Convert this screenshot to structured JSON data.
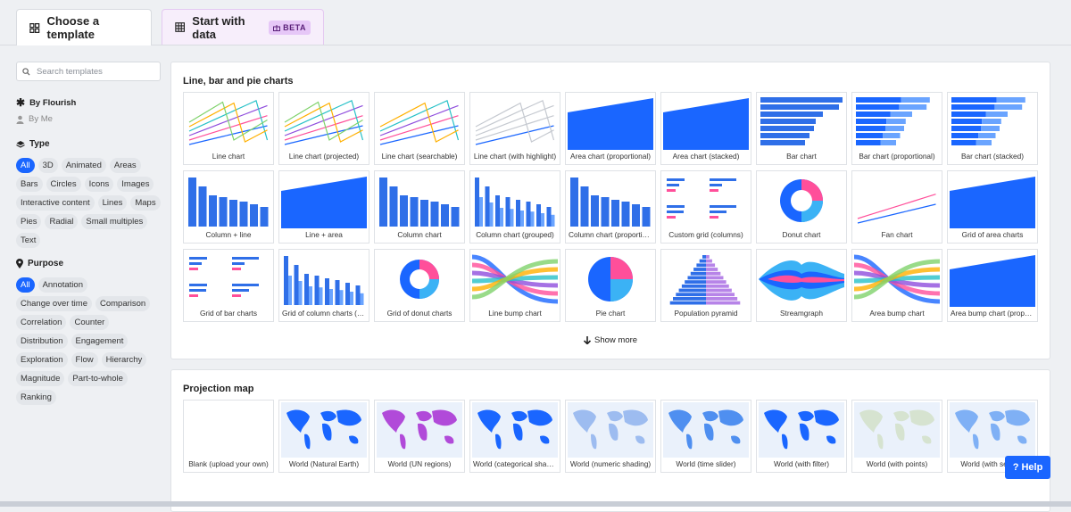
{
  "tabs": {
    "choose": "Choose a template",
    "start": "Start with data",
    "beta": "BETA"
  },
  "search": {
    "placeholder": "Search templates"
  },
  "sidebar": {
    "by_flourish": "By Flourish",
    "by_me": "By Me",
    "type_heading": "Type",
    "type_chips": [
      "All",
      "3D",
      "Animated",
      "Areas",
      "Bars",
      "Circles",
      "Icons",
      "Images",
      "Interactive content",
      "Lines",
      "Maps",
      "Pies",
      "Radial",
      "Small multiples",
      "Text"
    ],
    "purpose_heading": "Purpose",
    "purpose_chips": [
      "All",
      "Annotation",
      "Change over time",
      "Comparison",
      "Correlation",
      "Counter",
      "Distribution",
      "Engagement",
      "Exploration",
      "Flow",
      "Hierarchy",
      "Magnitude",
      "Part-to-whole",
      "Ranking"
    ]
  },
  "sections": {
    "charts": {
      "title": "Line, bar and pie charts",
      "cards": [
        "Line chart",
        "Line chart (projected)",
        "Line chart (searchable)",
        "Line chart (with highlight)",
        "Area chart (proportional)",
        "Area chart (stacked)",
        "Bar chart",
        "Bar chart (proportional)",
        "Bar chart (stacked)",
        "Column + line",
        "Line + area",
        "Column chart",
        "Column chart (grouped)",
        "Column chart (proportional)",
        "Custom grid (columns)",
        "Donut chart",
        "Fan chart",
        "Grid of area charts",
        "Grid of bar charts",
        "Grid of column charts (stacked)",
        "Grid of donut charts",
        "Line bump chart",
        "Pie chart",
        "Population pyramid",
        "Streamgraph",
        "Area bump chart",
        "Area bump chart (proportional)"
      ],
      "show_more": "Show more"
    },
    "maps": {
      "title": "Projection map",
      "cards": [
        "Blank (upload your own)",
        "World (Natural Earth)",
        "World (UN regions)",
        "World (categorical shading)",
        "World (numeric shading)",
        "World (time slider)",
        "World (with filter)",
        "World (with points)",
        "World (with search)"
      ]
    }
  },
  "help": "? Help",
  "colors": {
    "accent": "#1a66ff",
    "beta_bg": "#e6c7f7"
  }
}
